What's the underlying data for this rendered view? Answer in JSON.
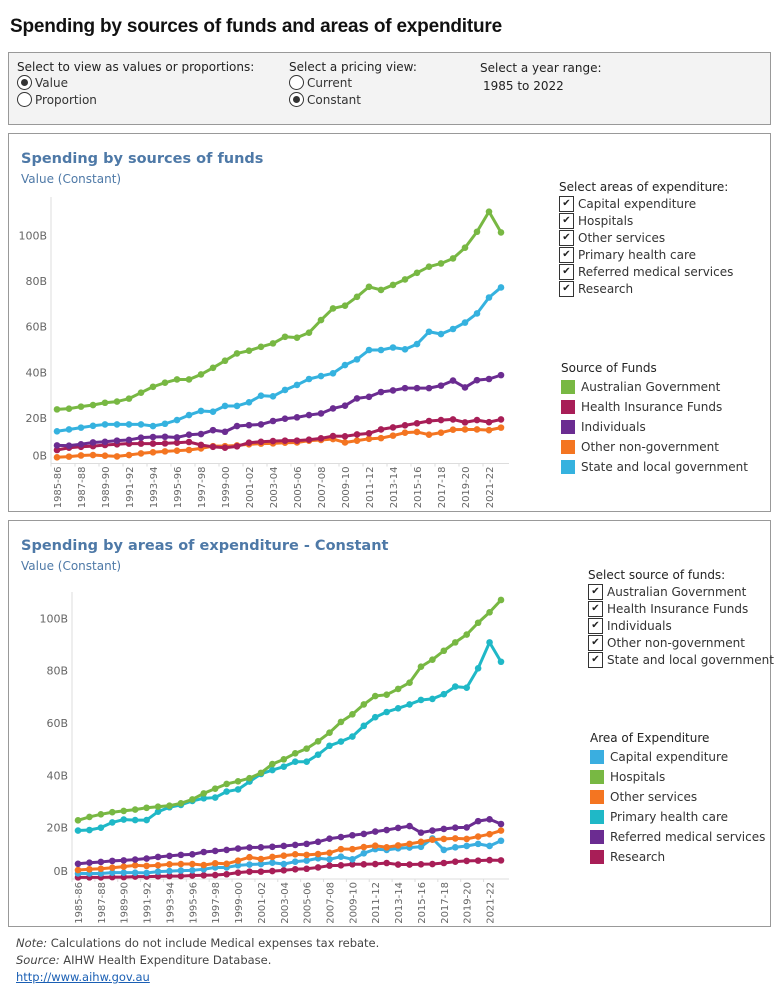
{
  "title": "Spending by sources of funds and areas of expenditure",
  "controls": {
    "view": {
      "label": "Select to view as values or proportions:",
      "options": [
        "Value",
        "Proportion"
      ],
      "selected": "Value"
    },
    "pricing": {
      "label": "Select a pricing view:",
      "options": [
        "Current",
        "Constant"
      ],
      "selected": "Constant"
    },
    "year": {
      "label": "Select a year range:",
      "value": "1985 to 2022"
    }
  },
  "panel1": {
    "title": "Spending by sources of funds",
    "subtitle": "Value (Constant)",
    "filter": {
      "label": "Select areas of expenditure:",
      "items": [
        "Capital expenditure",
        "Hospitals",
        "Other services",
        "Primary health care",
        "Referred medical services",
        "Research"
      ],
      "checked": [
        true,
        true,
        true,
        true,
        true,
        true
      ],
      "check_glyph": "✔"
    },
    "legend_title": "Source of Funds"
  },
  "panel2": {
    "title": "Spending by areas of expenditure - Constant",
    "subtitle": "Value (Constant)",
    "filter": {
      "label": "Select source of funds:",
      "items": [
        "Australian Government",
        "Health Insurance Funds",
        "Individuals",
        "Other non-government",
        "State and local government"
      ],
      "checked": [
        true,
        true,
        true,
        true,
        true
      ],
      "check_glyph": "✔"
    },
    "legend_title": "Area of Expenditure"
  },
  "footer": {
    "note_label": "Note:",
    "note": " Calculations do not include Medical expenses tax rebate.",
    "source_label": "Source:",
    "source": " AIHW Health Expenditure Database.",
    "link": "http://www.aihw.gov.au"
  },
  "chart_data": [
    {
      "type": "line",
      "x": [
        "1985-86",
        "1986-87",
        "1987-88",
        "1988-89",
        "1989-90",
        "1990-91",
        "1991-92",
        "1992-93",
        "1993-94",
        "1994-95",
        "1995-96",
        "1996-97",
        "1997-98",
        "1998-99",
        "1999-00",
        "2000-01",
        "2001-02",
        "2002-03",
        "2003-04",
        "2004-05",
        "2005-06",
        "2006-07",
        "2007-08",
        "2008-09",
        "2009-10",
        "2010-11",
        "2011-12",
        "2012-13",
        "2013-14",
        "2014-15",
        "2015-16",
        "2016-17",
        "2017-18",
        "2018-19",
        "2019-20",
        "2020-21",
        "2021-22",
        "2022-23"
      ],
      "x_tick_labels": [
        "1985-86",
        "1987-88",
        "1989-90",
        "1991-92",
        "1993-94",
        "1995-96",
        "1997-98",
        "1999-00",
        "2001-02",
        "2003-04",
        "2005-06",
        "2007-08",
        "2009-10",
        "2011-12",
        "2013-14",
        "2015-16",
        "2017-18",
        "2019-20",
        "2021-22"
      ],
      "y_ticks": [
        "0B",
        "20B",
        "40B",
        "60B",
        "80B",
        "100B"
      ],
      "ylim": [
        0,
        115
      ],
      "y_unit": "billions",
      "grid": false,
      "legend": "right",
      "series": [
        {
          "name": "Australian Government",
          "color": "#78b843",
          "values": [
            23.8,
            24.1,
            25,
            25.7,
            26.7,
            27.2,
            28.5,
            31.1,
            33.7,
            35.5,
            36.9,
            36.9,
            39.1,
            42,
            45.1,
            48.3,
            49.5,
            51.2,
            52.7,
            55.6,
            55.2,
            57.4,
            62.9,
            68,
            69.2,
            73.1,
            77.5,
            76.1,
            78.3,
            80.7,
            83.6,
            86.3,
            87.7,
            89.9,
            94.6,
            101.6,
            110.4,
            101.3
          ]
        },
        {
          "name": "Health Insurance Funds",
          "color": "#a81e57",
          "values": [
            6,
            7,
            7.4,
            7.7,
            8.2,
            8.5,
            8.8,
            8.8,
            8.8,
            8.9,
            9.2,
            9.5,
            8.2,
            7.4,
            7,
            7.6,
            9.2,
            9.6,
            9.9,
            10.1,
            10.1,
            10.5,
            11.1,
            12.1,
            12,
            12.8,
            13.3,
            15,
            15.9,
            16.8,
            17.7,
            18.7,
            19.1,
            19.4,
            18.1,
            19.1,
            18.2,
            19.4
          ]
        },
        {
          "name": "Individuals",
          "color": "#6b2c91",
          "values": [
            8,
            7.9,
            8.5,
            9.3,
            9.6,
            10.1,
            10.4,
            11.4,
            11.7,
            11.8,
            11.5,
            12.7,
            13,
            14.7,
            14,
            16.5,
            16.9,
            17.2,
            18.7,
            19.7,
            20.3,
            21.3,
            22,
            24.2,
            25.4,
            28.6,
            29.3,
            31.4,
            32.1,
            33.1,
            33.1,
            33.1,
            34.2,
            36.4,
            33.4,
            36.6,
            37.1,
            38.8
          ]
        },
        {
          "name": "Other non-government",
          "color": "#f47521",
          "values": [
            2.8,
            3.1,
            3.6,
            3.8,
            3.5,
            3.2,
            3.8,
            4.5,
            5,
            5.4,
            5.7,
            6,
            6.7,
            7.7,
            7.7,
            8,
            8.5,
            8.8,
            8.9,
            9.2,
            9.3,
            10.1,
            10.4,
            10.8,
            9.3,
            10.1,
            10.9,
            11.2,
            12.3,
            13.6,
            13.9,
            12.7,
            13.6,
            14.9,
            15,
            15,
            14.7,
            15.8
          ]
        },
        {
          "name": "State and local government",
          "color": "#35b2df",
          "values": [
            14.2,
            15,
            15.8,
            16.6,
            17.2,
            17.2,
            17.2,
            17.2,
            16.5,
            17.5,
            19.1,
            21.3,
            23.1,
            22.8,
            25.3,
            25.3,
            26.9,
            29.8,
            29.5,
            32.3,
            34.5,
            37.1,
            38.4,
            39.6,
            43.2,
            45.7,
            49.8,
            49.8,
            50.9,
            50.1,
            52.4,
            57.8,
            56.8,
            59,
            61.8,
            65.8,
            72.8,
            77.2
          ]
        }
      ]
    },
    {
      "type": "line",
      "x": [
        "1985-86",
        "1986-87",
        "1987-88",
        "1988-89",
        "1989-90",
        "1990-91",
        "1991-92",
        "1992-93",
        "1993-94",
        "1994-95",
        "1995-96",
        "1996-97",
        "1997-98",
        "1998-99",
        "1999-00",
        "2000-01",
        "2001-02",
        "2002-03",
        "2003-04",
        "2004-05",
        "2005-06",
        "2006-07",
        "2007-08",
        "2008-09",
        "2009-10",
        "2010-11",
        "2011-12",
        "2012-13",
        "2013-14",
        "2014-15",
        "2015-16",
        "2016-17",
        "2017-18",
        "2018-19",
        "2019-20",
        "2020-21",
        "2021-22",
        "2022-23"
      ],
      "x_tick_labels": [
        "1985-86",
        "1987-88",
        "1989-90",
        "1991-92",
        "1993-94",
        "1995-96",
        "1997-98",
        "1999-00",
        "2001-02",
        "2003-04",
        "2005-06",
        "2007-08",
        "2009-10",
        "2011-12",
        "2013-14",
        "2015-16",
        "2017-18",
        "2019-20",
        "2021-22"
      ],
      "y_ticks": [
        "0B",
        "20B",
        "40B",
        "60B",
        "80B",
        "100B"
      ],
      "ylim": [
        0,
        110
      ],
      "y_unit": "billions",
      "grid": false,
      "legend": "right",
      "series": [
        {
          "name": "Capital expenditure",
          "color": "#3aaee0",
          "values": [
            2.5,
            2.5,
            2.5,
            2.8,
            2.8,
            2.8,
            2.7,
            3.2,
            3.4,
            3.6,
            3.7,
            4.1,
            4.8,
            4.8,
            5.6,
            5.9,
            6.1,
            6.6,
            6.1,
            7,
            7.4,
            8.3,
            7.9,
            8.9,
            7.9,
            10.2,
            11.8,
            11.5,
            12.1,
            12.4,
            12.7,
            15.9,
            11.5,
            12.5,
            13,
            13.8,
            13,
            15
          ]
        },
        {
          "name": "Hospitals",
          "color": "#78b843",
          "values": [
            22.8,
            24.1,
            25.1,
            25.9,
            26.4,
            26.9,
            27.6,
            28,
            28.4,
            29.3,
            30.8,
            33.1,
            34.9,
            36.7,
            37.7,
            38.9,
            40.9,
            44.3,
            46.1,
            48.4,
            50.2,
            53,
            56.3,
            60.4,
            63.3,
            67.1,
            70.3,
            70.8,
            73,
            75.4,
            81.5,
            84.2,
            87.6,
            90.8,
            93.8,
            98.3,
            102.3,
            107
          ]
        },
        {
          "name": "Other services",
          "color": "#f47521",
          "values": [
            3.8,
            4.1,
            4.3,
            4.7,
            5.1,
            5.6,
            5.4,
            5.6,
            6,
            6.1,
            6.1,
            5.7,
            6.4,
            6.2,
            7.4,
            8.7,
            8,
            8.8,
            9.3,
            9.8,
            9.6,
            9.9,
            10.4,
            11.8,
            11.8,
            12.6,
            13.1,
            12.5,
            13.2,
            13.8,
            14.6,
            15.4,
            15.7,
            15.9,
            15.7,
            16.6,
            17.5,
            18.9
          ]
        },
        {
          "name": "Primary health care",
          "color": "#1fb8c7",
          "values": [
            18.9,
            19.1,
            20,
            22,
            23.1,
            22.9,
            22.9,
            26.1,
            27.8,
            28.7,
            30.2,
            31.2,
            31.5,
            33.8,
            34.6,
            37.6,
            40.5,
            42,
            43.3,
            45.2,
            45.2,
            47.9,
            51.3,
            52.9,
            54.8,
            58.9,
            62.2,
            64.2,
            65.6,
            67.1,
            68.8,
            69.2,
            71,
            73.9,
            73.5,
            80.9,
            90.8,
            83.4
          ]
        },
        {
          "name": "Referred medical services",
          "color": "#6b2c91",
          "values": [
            6.2,
            6.6,
            6.9,
            7.3,
            7.5,
            7.8,
            8.2,
            8.8,
            9.2,
            9.6,
            9.8,
            10.7,
            11.1,
            11.5,
            12,
            12.4,
            12.5,
            12.7,
            13,
            13.4,
            13.8,
            14.6,
            15.8,
            16.4,
            17.1,
            17.6,
            18.5,
            19.1,
            19.9,
            20.6,
            18.1,
            18.9,
            19.5,
            20,
            20.1,
            22.5,
            23.2,
            21.4
          ]
        },
        {
          "name": "Research",
          "color": "#a81e57",
          "values": [
            1,
            1,
            1,
            1.1,
            1.1,
            1.3,
            1.3,
            1.4,
            1.5,
            1.5,
            1.7,
            1.8,
            1.9,
            2.2,
            2.8,
            3.2,
            3.2,
            3.4,
            3.7,
            4.1,
            4.3,
            4.8,
            5.5,
            5.6,
            6,
            6,
            6.1,
            6.5,
            5.9,
            5.9,
            6,
            6.1,
            6.5,
            7,
            7.3,
            7.4,
            7.6,
            7.5
          ]
        }
      ]
    }
  ]
}
